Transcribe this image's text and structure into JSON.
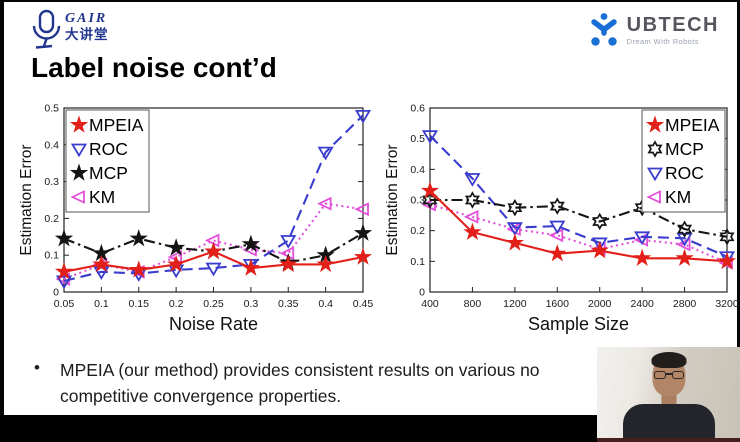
{
  "header": {
    "gair_logo": {
      "name": "GAIR",
      "subtitle": "大讲堂"
    },
    "ubtech_logo": {
      "name": "UBTECH",
      "tagline": "Dream With Robots"
    }
  },
  "slide": {
    "title": "Label noise cont’d",
    "bullet_lines": [
      "MPEIA (our method) provides consistent results on various no",
      "competitive convergence properties."
    ]
  },
  "colors": {
    "mpeia": "#e21f18",
    "roc": "#3a3ccd",
    "mcp": "#141414",
    "km": "#e24fd8",
    "gair_blue": "#21368e",
    "ubtech_blue": "#1a6fd4"
  },
  "chart_data": [
    {
      "type": "line",
      "title": "",
      "xlabel": "Noise Rate",
      "ylabel": "Estimation Error",
      "xtick_labels": [
        "0.05",
        "0.1",
        "0.15",
        "0.2",
        "0.25",
        "0.3",
        "0.35",
        "0.4",
        "0.45"
      ],
      "ytick_labels": [
        "0",
        "0.1",
        "0.2",
        "0.3",
        "0.4",
        "0.5"
      ],
      "ylim": [
        0,
        0.5
      ],
      "grid": false,
      "legend_position": "top-left",
      "series": [
        {
          "name": "MPEIA",
          "color": "#e21f18",
          "line": "solid",
          "marker": "star-filled",
          "values": [
            0.055,
            0.075,
            0.06,
            0.075,
            0.11,
            0.065,
            0.075,
            0.075,
            0.095
          ]
        },
        {
          "name": "ROC",
          "color": "#3a3ccd",
          "line": "dashed",
          "marker": "triangle-down",
          "values": [
            0.03,
            0.055,
            0.05,
            0.06,
            0.065,
            0.075,
            0.14,
            0.38,
            0.48
          ]
        },
        {
          "name": "MCP",
          "color": "#141414",
          "line": "dashdot",
          "marker": "star-filled",
          "values": [
            0.145,
            0.105,
            0.145,
            0.12,
            0.11,
            0.13,
            0.08,
            0.1,
            0.16
          ]
        },
        {
          "name": "KM",
          "color": "#e24fd8",
          "line": "dotted",
          "marker": "triangle-left",
          "values": [
            0.035,
            0.075,
            0.055,
            0.095,
            0.14,
            0.115,
            0.105,
            0.24,
            0.225
          ]
        }
      ]
    },
    {
      "type": "line",
      "title": "",
      "xlabel": "Sample Size",
      "ylabel": "Estimation Error",
      "xtick_labels": [
        "400",
        "800",
        "1200",
        "1600",
        "2000",
        "2400",
        "2800",
        "3200"
      ],
      "ytick_labels": [
        "0",
        "0.1",
        "0.2",
        "0.3",
        "0.4",
        "0.5",
        "0.6"
      ],
      "ylim": [
        0,
        0.6
      ],
      "grid": false,
      "legend_position": "top-right",
      "series": [
        {
          "name": "MPEIA",
          "color": "#e21f18",
          "line": "solid",
          "marker": "star-filled",
          "values": [
            0.33,
            0.195,
            0.16,
            0.125,
            0.135,
            0.11,
            0.11,
            0.1
          ]
        },
        {
          "name": "MCP",
          "color": "#141414",
          "line": "dashdot",
          "marker": "hexagram",
          "values": [
            0.3,
            0.3,
            0.275,
            0.28,
            0.23,
            0.275,
            0.205,
            0.18
          ]
        },
        {
          "name": "ROC",
          "color": "#3a3ccd",
          "line": "dashed",
          "marker": "triangle-down",
          "values": [
            0.51,
            0.37,
            0.21,
            0.215,
            0.16,
            0.18,
            0.175,
            0.115
          ]
        },
        {
          "name": "KM",
          "color": "#e24fd8",
          "line": "dotted",
          "marker": "triangle-left",
          "values": [
            0.285,
            0.245,
            0.205,
            0.185,
            0.14,
            0.17,
            0.155,
            0.095
          ]
        }
      ]
    }
  ]
}
